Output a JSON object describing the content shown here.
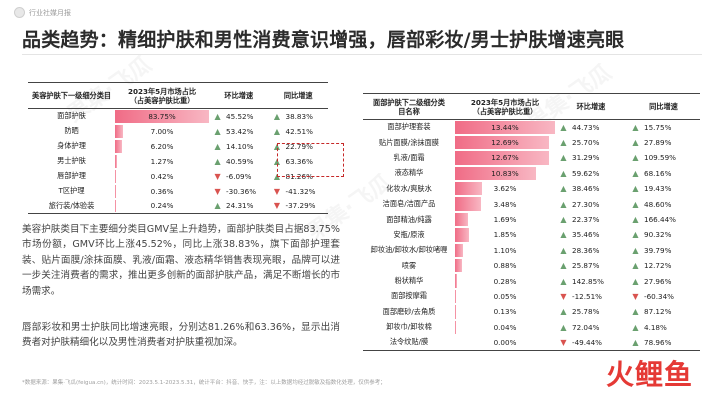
{
  "brand": {
    "name": "行业社媒月报"
  },
  "title": "品类趋势：精细护肤和男性消费意识增强，唇部彩妆/男士护肤增速亮眼",
  "watermarks": [
    "果集·飞瓜",
    "果集·飞瓜",
    "果集·飞瓜"
  ],
  "table1": {
    "headers": [
      "美容护肤下一级细分类目",
      "2023年5月市场占比\n（占美容护肤比重）",
      "环比增速",
      "同比增速"
    ],
    "rows": [
      {
        "name": "面部护肤",
        "share": "83.75%",
        "share_value": 83.75,
        "mom": "45.52%",
        "mom_dir": "up",
        "yoy": "38.83%",
        "yoy_dir": "up"
      },
      {
        "name": "防晒",
        "share": "7.00%",
        "share_value": 7.0,
        "mom": "53.42%",
        "mom_dir": "up",
        "yoy": "42.51%",
        "yoy_dir": "up"
      },
      {
        "name": "身体护理",
        "share": "6.20%",
        "share_value": 6.2,
        "mom": "14.10%",
        "mom_dir": "up",
        "yoy": "22.79%",
        "yoy_dir": "up"
      },
      {
        "name": "男士护肤",
        "share": "1.27%",
        "share_value": 1.27,
        "mom": "40.59%",
        "mom_dir": "up",
        "yoy": "63.36%",
        "yoy_dir": "up"
      },
      {
        "name": "唇部护理",
        "share": "0.42%",
        "share_value": 0.42,
        "mom": "-6.09%",
        "mom_dir": "down",
        "yoy": "81.26%",
        "yoy_dir": "up"
      },
      {
        "name": "T区护理",
        "share": "0.36%",
        "share_value": 0.36,
        "mom": "-30.36%",
        "mom_dir": "down",
        "yoy": "-41.32%",
        "yoy_dir": "down"
      },
      {
        "name": "旅行装/体验装",
        "share": "0.24%",
        "share_value": 0.24,
        "mom": "24.31%",
        "mom_dir": "up",
        "yoy": "-37.29%",
        "yoy_dir": "down"
      }
    ]
  },
  "table2": {
    "headers": [
      "面部护肤下二级细分类\n目名称",
      "2023年5月市场占比\n（占美容护肤比重）",
      "环比增速",
      "同比增速"
    ],
    "rows": [
      {
        "name": "面部护理套装",
        "share": "13.44%",
        "share_value": 13.44,
        "mom": "44.73%",
        "mom_dir": "up",
        "yoy": "15.75%",
        "yoy_dir": "up"
      },
      {
        "name": "贴片面膜/涂抹面膜",
        "share": "12.69%",
        "share_value": 12.69,
        "mom": "25.70%",
        "mom_dir": "up",
        "yoy": "27.89%",
        "yoy_dir": "up"
      },
      {
        "name": "乳液/面霜",
        "share": "12.67%",
        "share_value": 12.67,
        "mom": "31.29%",
        "mom_dir": "up",
        "yoy": "109.59%",
        "yoy_dir": "up"
      },
      {
        "name": "液态精华",
        "share": "10.83%",
        "share_value": 10.83,
        "mom": "59.62%",
        "mom_dir": "up",
        "yoy": "68.16%",
        "yoy_dir": "up"
      },
      {
        "name": "化妆水/爽肤水",
        "share": "3.62%",
        "share_value": 3.62,
        "mom": "38.46%",
        "mom_dir": "up",
        "yoy": "19.43%",
        "yoy_dir": "up"
      },
      {
        "name": "洁面皂/洁面产品",
        "share": "3.48%",
        "share_value": 3.48,
        "mom": "27.30%",
        "mom_dir": "up",
        "yoy": "48.60%",
        "yoy_dir": "up"
      },
      {
        "name": "面部精油/纯露",
        "share": "1.69%",
        "share_value": 1.69,
        "mom": "22.37%",
        "mom_dir": "up",
        "yoy": "166.44%",
        "yoy_dir": "up"
      },
      {
        "name": "安瓶/原液",
        "share": "1.85%",
        "share_value": 1.85,
        "mom": "35.46%",
        "mom_dir": "up",
        "yoy": "90.32%",
        "yoy_dir": "up"
      },
      {
        "name": "卸妆油/卸妆水/卸妆啫喱",
        "share": "1.10%",
        "share_value": 1.1,
        "mom": "28.36%",
        "mom_dir": "up",
        "yoy": "39.79%",
        "yoy_dir": "up"
      },
      {
        "name": "喷雾",
        "share": "0.88%",
        "share_value": 0.88,
        "mom": "25.87%",
        "mom_dir": "up",
        "yoy": "12.72%",
        "yoy_dir": "up"
      },
      {
        "name": "粉状精华",
        "share": "0.28%",
        "share_value": 0.28,
        "mom": "142.85%",
        "mom_dir": "up",
        "yoy": "27.96%",
        "yoy_dir": "up"
      },
      {
        "name": "面部按摩霜",
        "share": "0.05%",
        "share_value": 0.05,
        "mom": "-12.51%",
        "mom_dir": "down",
        "yoy": "-60.34%",
        "yoy_dir": "down"
      },
      {
        "name": "面部磨砂/去角质",
        "share": "0.13%",
        "share_value": 0.13,
        "mom": "25.78%",
        "mom_dir": "up",
        "yoy": "87.12%",
        "yoy_dir": "up"
      },
      {
        "name": "卸妆巾/卸妆棉",
        "share": "0.04%",
        "share_value": 0.04,
        "mom": "72.04%",
        "mom_dir": "up",
        "yoy": "4.18%",
        "yoy_dir": "up"
      },
      {
        "name": "法令纹贴/膜",
        "share": "0.00%",
        "share_value": 0.0,
        "mom": "-49.44%",
        "mom_dir": "down",
        "yoy": "78.96%",
        "yoy_dir": "up"
      }
    ]
  },
  "paragraph1": "美容护肤类目下主要细分类目GMV呈上升趋势，面部护肤类目占据83.75%市场份额，GMV环比上涨45.52%，同比上涨38.83%，旗下面部护理套装、贴片面膜/涂抹面膜、乳液/面霜、液态精华销售表现亮眼，品牌可以进一步关注消费者的需求，推出更多创新的面部护肤产品，满足不断增长的市场需求。",
  "paragraph2": "唇部彩妆和男士护肤同比增速亮眼，分别达81.26%和63.36%，显示出消费者对护肤精细化以及男性消费者对护肤重视加深。",
  "footnote": "*数据来源：果集·飞瓜(feigua.cn)，统计时间：2023.5.1-2023.5.31，统计平台：抖音、快手，注：以上数据均经过脱敏及指数化处理，仅供参考；",
  "logo_text": "火鲤鱼",
  "icons": {
    "up": "▲",
    "down": "▼"
  },
  "colors": {
    "bar": "#f06c86",
    "up": "#6aa06f",
    "down": "#d9534f",
    "highlight": "#c62828"
  }
}
